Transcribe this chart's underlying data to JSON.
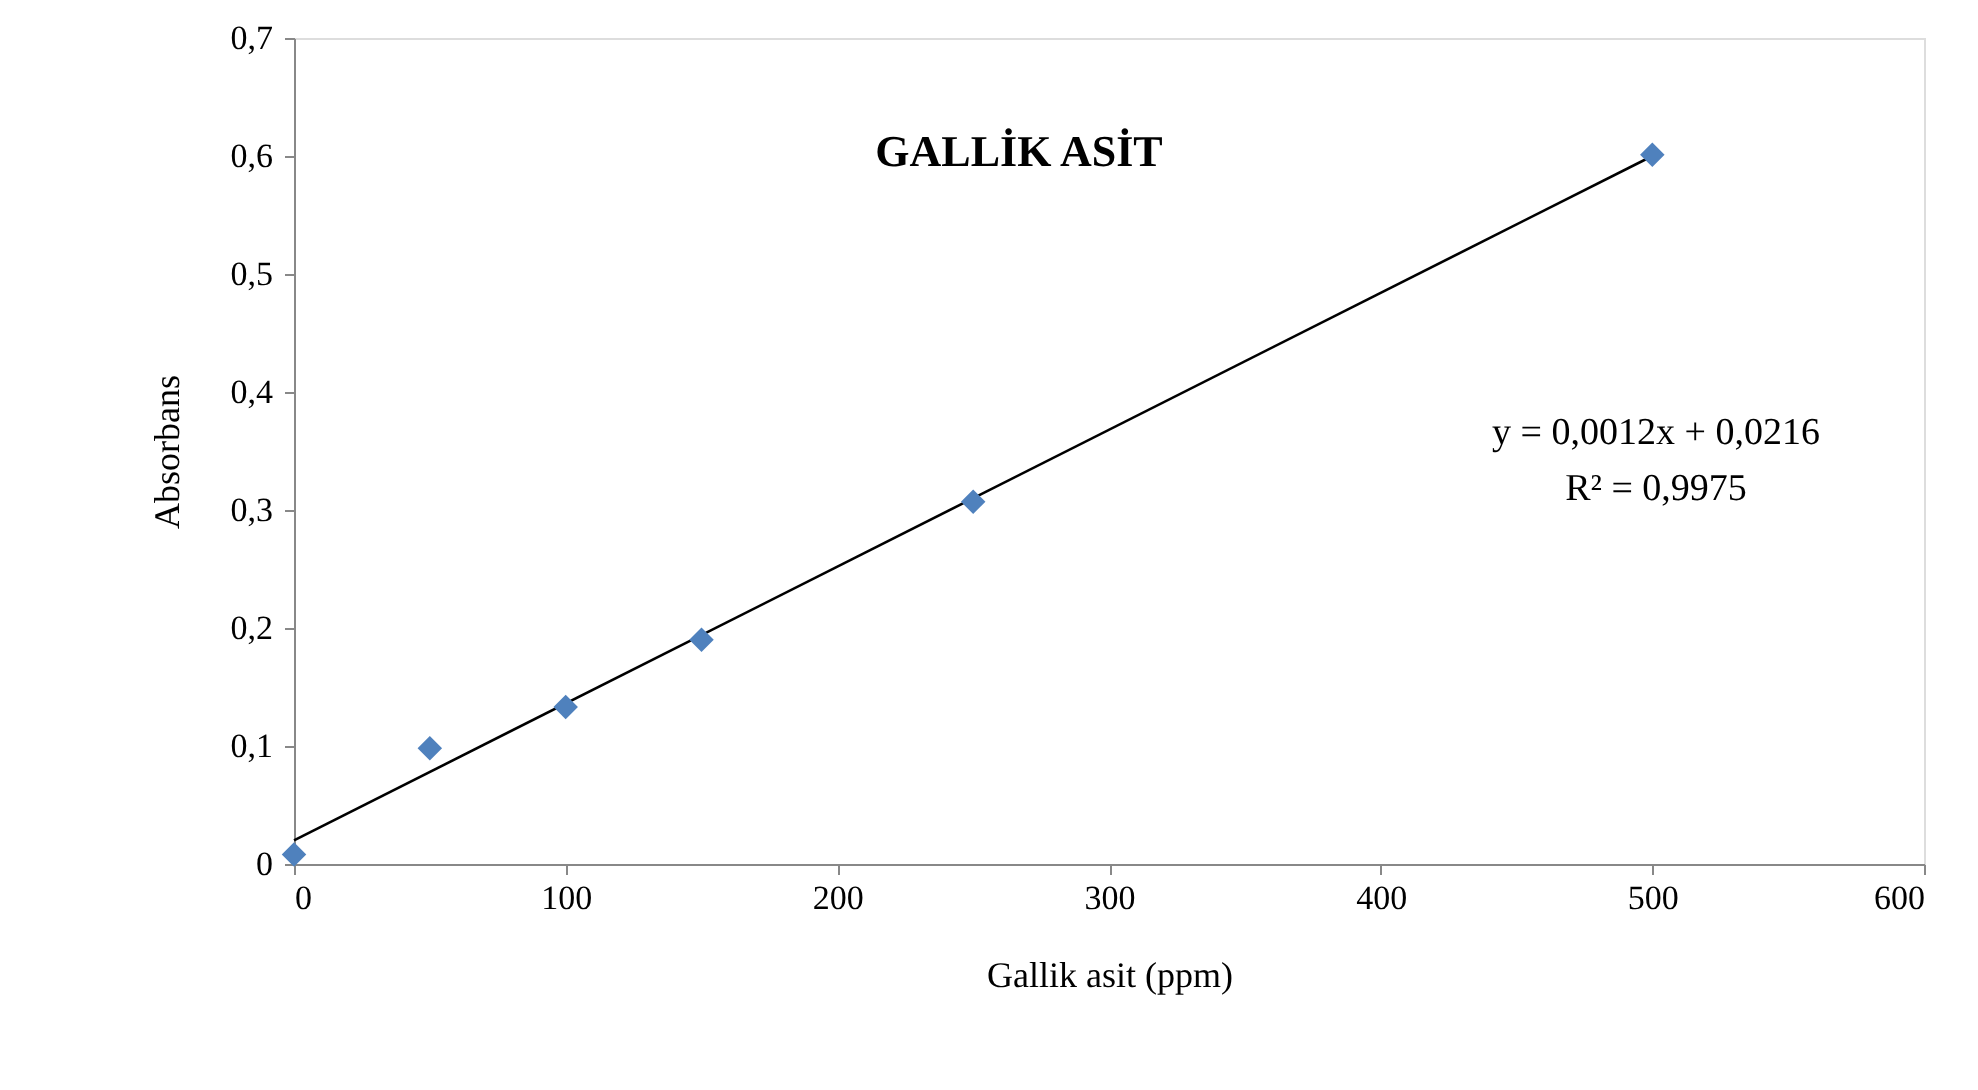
{
  "chart_data": {
    "type": "scatter",
    "title": "GALLİK ASİT",
    "xlabel": "Gallik asit (ppm)",
    "ylabel": "Absorbans",
    "x": [
      0,
      50,
      100,
      150,
      250,
      500
    ],
    "series": [
      {
        "color": "#4f81bd",
        "marker": "diamond",
        "values": [
          0.008,
          0.098,
          0.133,
          0.19,
          0.307,
          0.601
        ]
      },
      {
        "type": "line",
        "color": "#000000",
        "marker": "none",
        "line_style": "solid",
        "x": [
          0,
          500
        ],
        "values": [
          0.02,
          0.6
        ]
      }
    ],
    "xlim": [
      0,
      600
    ],
    "xticks": [
      0,
      100,
      200,
      300,
      400,
      500,
      600
    ],
    "ylim": [
      0,
      0.7
    ],
    "yticks": [
      {
        "value": 0,
        "label": "0"
      },
      {
        "value": 0.1,
        "label": "0,1"
      },
      {
        "value": 0.2,
        "label": "0,2"
      },
      {
        "value": 0.3,
        "label": "0,3"
      },
      {
        "value": 0.4,
        "label": "0,4"
      },
      {
        "value": 0.5,
        "label": "0,5"
      },
      {
        "value": 0.6,
        "label": "0,6"
      },
      {
        "value": 0.7,
        "label": "0,7"
      }
    ],
    "annotations": [
      "y = 0,0012x + 0,0216",
      "R² = 0,9975"
    ],
    "grid": false
  }
}
